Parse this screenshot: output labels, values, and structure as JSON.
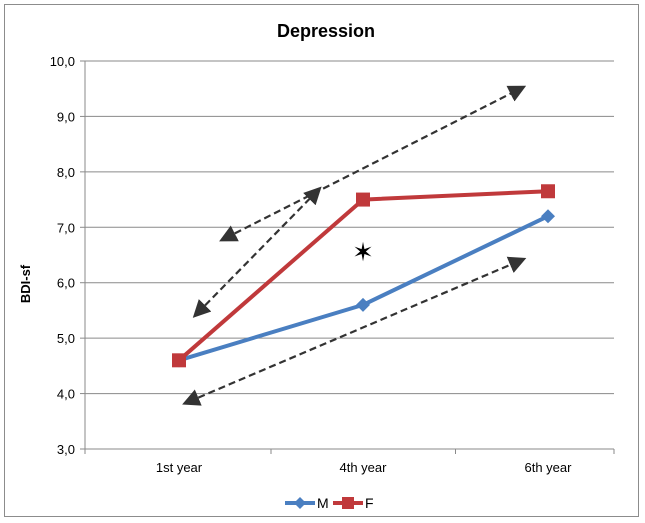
{
  "chart_data": {
    "type": "line",
    "title": "Depression",
    "xlabel": "",
    "ylabel": "BDI-sf",
    "categories": [
      "1st year",
      "4th year",
      "6th year"
    ],
    "ylim": [
      3.0,
      10.0
    ],
    "y_ticks": [
      "3,0",
      "4,0",
      "5,0",
      "6,0",
      "7,0",
      "8,0",
      "9,0",
      "10,0"
    ],
    "grid": true,
    "legend_position": "bottom",
    "series": [
      {
        "name": "M",
        "values": [
          4.6,
          5.6,
          7.2
        ],
        "color": "#4a7fc1",
        "marker": "diamond"
      },
      {
        "name": "F",
        "values": [
          4.6,
          7.5,
          7.65
        ],
        "color": "#c0393b",
        "marker": "square"
      }
    ],
    "annotation": "✶",
    "annotation_position": {
      "category": 1.0,
      "value": 6.55
    },
    "arrows": [
      {
        "from": [
          0.05,
          3.85
        ],
        "to": [
          1.85,
          6.4
        ]
      },
      {
        "from": [
          0.25,
          6.8
        ],
        "to": [
          1.85,
          9.5
        ]
      },
      {
        "from": [
          0.1,
          5.45
        ],
        "to": [
          0.75,
          7.65
        ]
      }
    ]
  }
}
